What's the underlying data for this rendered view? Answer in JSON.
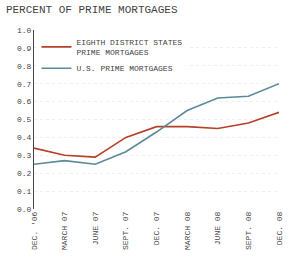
{
  "chart_data": {
    "type": "line",
    "title": "PERCENT OF PRIME MORTGAGES",
    "categories": [
      "DEC. '06",
      "MARCH 07",
      "JUNE 07",
      "SEPT. 07",
      "DEC. 07",
      "MARCH 08",
      "JUNE 08",
      "SEPT. 08",
      "DEC. 08"
    ],
    "series": [
      {
        "name": "EIGHTH DISTRICT STATES\nPRIME MORTGAGES",
        "color": "#b5402a",
        "values": [
          0.34,
          0.3,
          0.29,
          0.4,
          0.46,
          0.46,
          0.45,
          0.48,
          0.54
        ]
      },
      {
        "name": "U.S. PRIME MORTGAGES",
        "color": "#5b8a9a",
        "values": [
          0.25,
          0.27,
          0.25,
          0.32,
          0.43,
          0.55,
          0.62,
          0.63,
          0.7
        ]
      }
    ],
    "ylim": [
      0.0,
      1.0
    ],
    "yticks": [
      {
        "value": 0.0,
        "label": "0.0"
      },
      0.1,
      0.2,
      0.3,
      0.4,
      0.5,
      0.6,
      0.7,
      0.8,
      0.9,
      {
        "value": 1.0,
        "label": "1.0"
      }
    ],
    "grid": true,
    "legend": "upper left"
  }
}
